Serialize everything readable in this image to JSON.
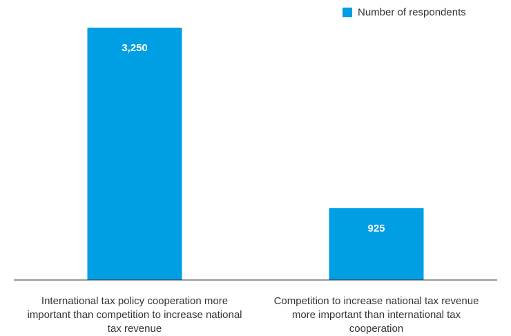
{
  "chart_data": {
    "type": "bar",
    "categories": [
      "International tax policy cooperation more important than competition to increase national tax revenue",
      "Competition to increase national tax revenue more important than international tax cooperation"
    ],
    "series": [
      {
        "name": "Number of respondents",
        "color": "#009fe3",
        "values": [
          3250,
          925
        ],
        "value_labels": [
          "3,250",
          "925"
        ]
      }
    ],
    "legend": "top-right"
  }
}
